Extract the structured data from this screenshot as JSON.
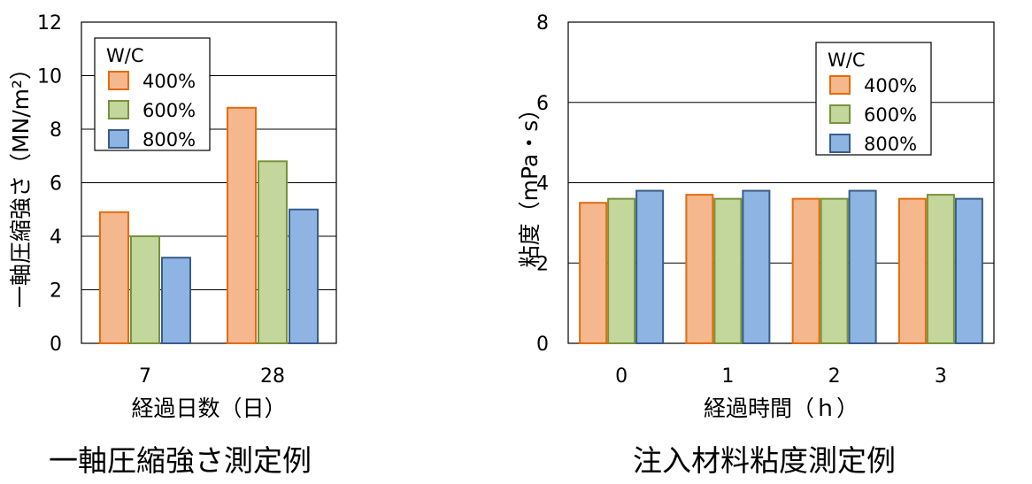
{
  "colors": {
    "400%": {
      "fill": "#f5b78e",
      "stroke": "#e46c0a"
    },
    "600%": {
      "fill": "#c3d69b",
      "stroke": "#77933c"
    },
    "800%": {
      "fill": "#8eb4e3",
      "stroke": "#385d8a"
    },
    "grid": "#000000"
  },
  "captions": {
    "left": "一軸圧縮強さ測定例",
    "right": "注入材料粘度測定例"
  },
  "chart_data": [
    {
      "type": "bar",
      "categories": [
        "7",
        "28"
      ],
      "series": [
        {
          "name": "400%",
          "values": [
            4.9,
            8.8
          ]
        },
        {
          "name": "600%",
          "values": [
            4.0,
            6.8
          ]
        },
        {
          "name": "800%",
          "values": [
            3.2,
            5.0
          ]
        }
      ],
      "xlabel": "経過日数（日）",
      "ylabel": "一軸圧縮強さ（MN/m²）",
      "ylim": [
        0,
        12
      ],
      "yticks": [
        "0",
        "2",
        "4",
        "6",
        "8",
        "10",
        "12"
      ],
      "legend_title": "W/C",
      "legend_position": "top-left",
      "grid": true
    },
    {
      "type": "bar",
      "categories": [
        "0",
        "1",
        "2",
        "3"
      ],
      "series": [
        {
          "name": "400%",
          "values": [
            3.5,
            3.7,
            3.6,
            3.6
          ]
        },
        {
          "name": "600%",
          "values": [
            3.6,
            3.6,
            3.6,
            3.7
          ]
        },
        {
          "name": "800%",
          "values": [
            3.8,
            3.8,
            3.8,
            3.6
          ]
        }
      ],
      "xlabel": "経過時間（ｈ）",
      "ylabel": "粘度（mPa・s）",
      "ylim": [
        0,
        8
      ],
      "yticks": [
        "0",
        "2",
        "4",
        "6",
        "8"
      ],
      "legend_title": "W/C",
      "legend_position": "top-right",
      "grid": true
    }
  ]
}
